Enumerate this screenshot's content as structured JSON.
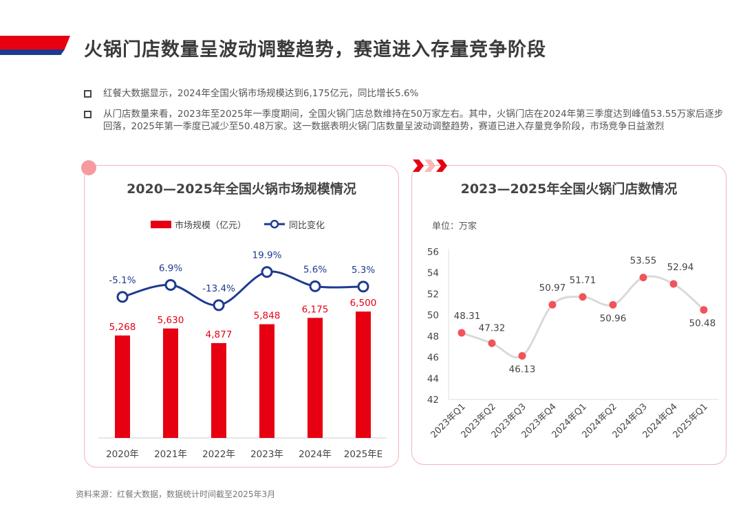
{
  "title": "火锅门店数量呈波动调整趋势，赛道进入存量竞争阶段",
  "bullets": [
    "红餐大数据显示，2024年全国火锅市场规模达到6,175亿元，同比增长5.6%",
    "从门店数量来看，2023年至2025年一季度期间，全国火锅门店总数维持在50万家左右。其中，火锅门店在2024年第三季度达到峰值53.55万家后逐步回落，2025年第一季度已减少至50.48万家。这一数据表明火锅门店数量呈波动调整趋势，赛道已进入存量竞争阶段，市场竞争日益激烈"
  ],
  "source": "资料来源：红餐大数据，数据统计时间截至2025年3月",
  "colors": {
    "red": "#e60012",
    "blue": "#1d3a8f",
    "line_gray": "#d9d9d9",
    "dot": "#f0545a"
  },
  "chart_data": [
    {
      "type": "bar",
      "title": "2020—2025年全国火锅市场规模情况",
      "categories": [
        "2020年",
        "2021年",
        "2022年",
        "2023年",
        "2024年",
        "2025年E"
      ],
      "series": [
        {
          "name": "市场规模（亿元）",
          "type": "bar",
          "values": [
            5268,
            5630,
            4877,
            5848,
            6175,
            6500
          ],
          "labels": [
            "5,268",
            "5,630",
            "4,877",
            "5,848",
            "6,175",
            "6,500"
          ]
        },
        {
          "name": "同比变化",
          "type": "line",
          "values": [
            -5.1,
            6.9,
            -13.4,
            19.9,
            5.6,
            5.3
          ],
          "labels": [
            "-5.1%",
            "6.9%",
            "-13.4%",
            "19.9%",
            "5.6%",
            "5.3%"
          ]
        }
      ],
      "legend": "top"
    },
    {
      "type": "line",
      "title": "2023—2025年全国火锅门店数情况",
      "unit": "单位：万家",
      "categories": [
        "2023年Q1",
        "2023年Q2",
        "2023年Q3",
        "2023年Q4",
        "2024年Q1",
        "2024年Q2",
        "2024年Q3",
        "2024年Q4",
        "2025年Q1"
      ],
      "values": [
        48.31,
        47.32,
        46.13,
        50.97,
        51.71,
        50.96,
        53.55,
        52.94,
        50.48
      ],
      "ylim": [
        42,
        56
      ],
      "yticks": [
        42,
        44,
        46,
        48,
        50,
        52,
        54,
        56
      ]
    }
  ]
}
